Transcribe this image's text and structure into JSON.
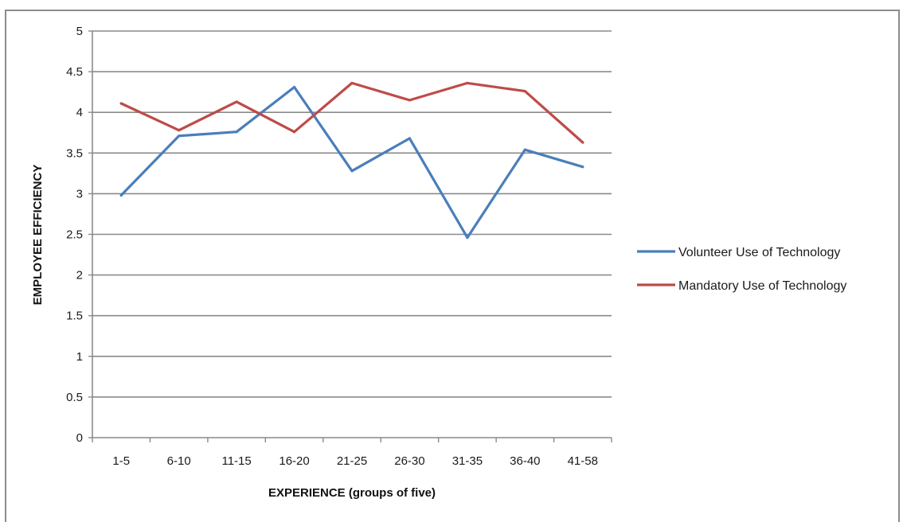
{
  "chart_data": {
    "type": "line",
    "title": "",
    "xlabel": "EXPERIENCE (groups of five)",
    "ylabel": "EMPLOYEE EFFICIENCY",
    "categories": [
      "1-5",
      "6-10",
      "11-15",
      "16-20",
      "21-25",
      "26-30",
      "31-35",
      "36-40",
      "41-58"
    ],
    "ylim": [
      0,
      5
    ],
    "yticks": [
      "0",
      "0.5",
      "1",
      "1.5",
      "2",
      "2.5",
      "3",
      "3.5",
      "4",
      "4.5",
      "5"
    ],
    "grid": true,
    "legend_position": "right",
    "series": [
      {
        "name": "Volunteer Use of Technology",
        "color": "#4a7ebb",
        "values": [
          2.98,
          3.71,
          3.76,
          4.31,
          3.28,
          3.68,
          2.46,
          3.54,
          3.33
        ]
      },
      {
        "name": "Mandatory Use of Technology",
        "color": "#be4b48",
        "values": [
          4.11,
          3.78,
          4.13,
          3.76,
          4.36,
          4.15,
          4.36,
          4.26,
          3.63
        ]
      }
    ]
  }
}
